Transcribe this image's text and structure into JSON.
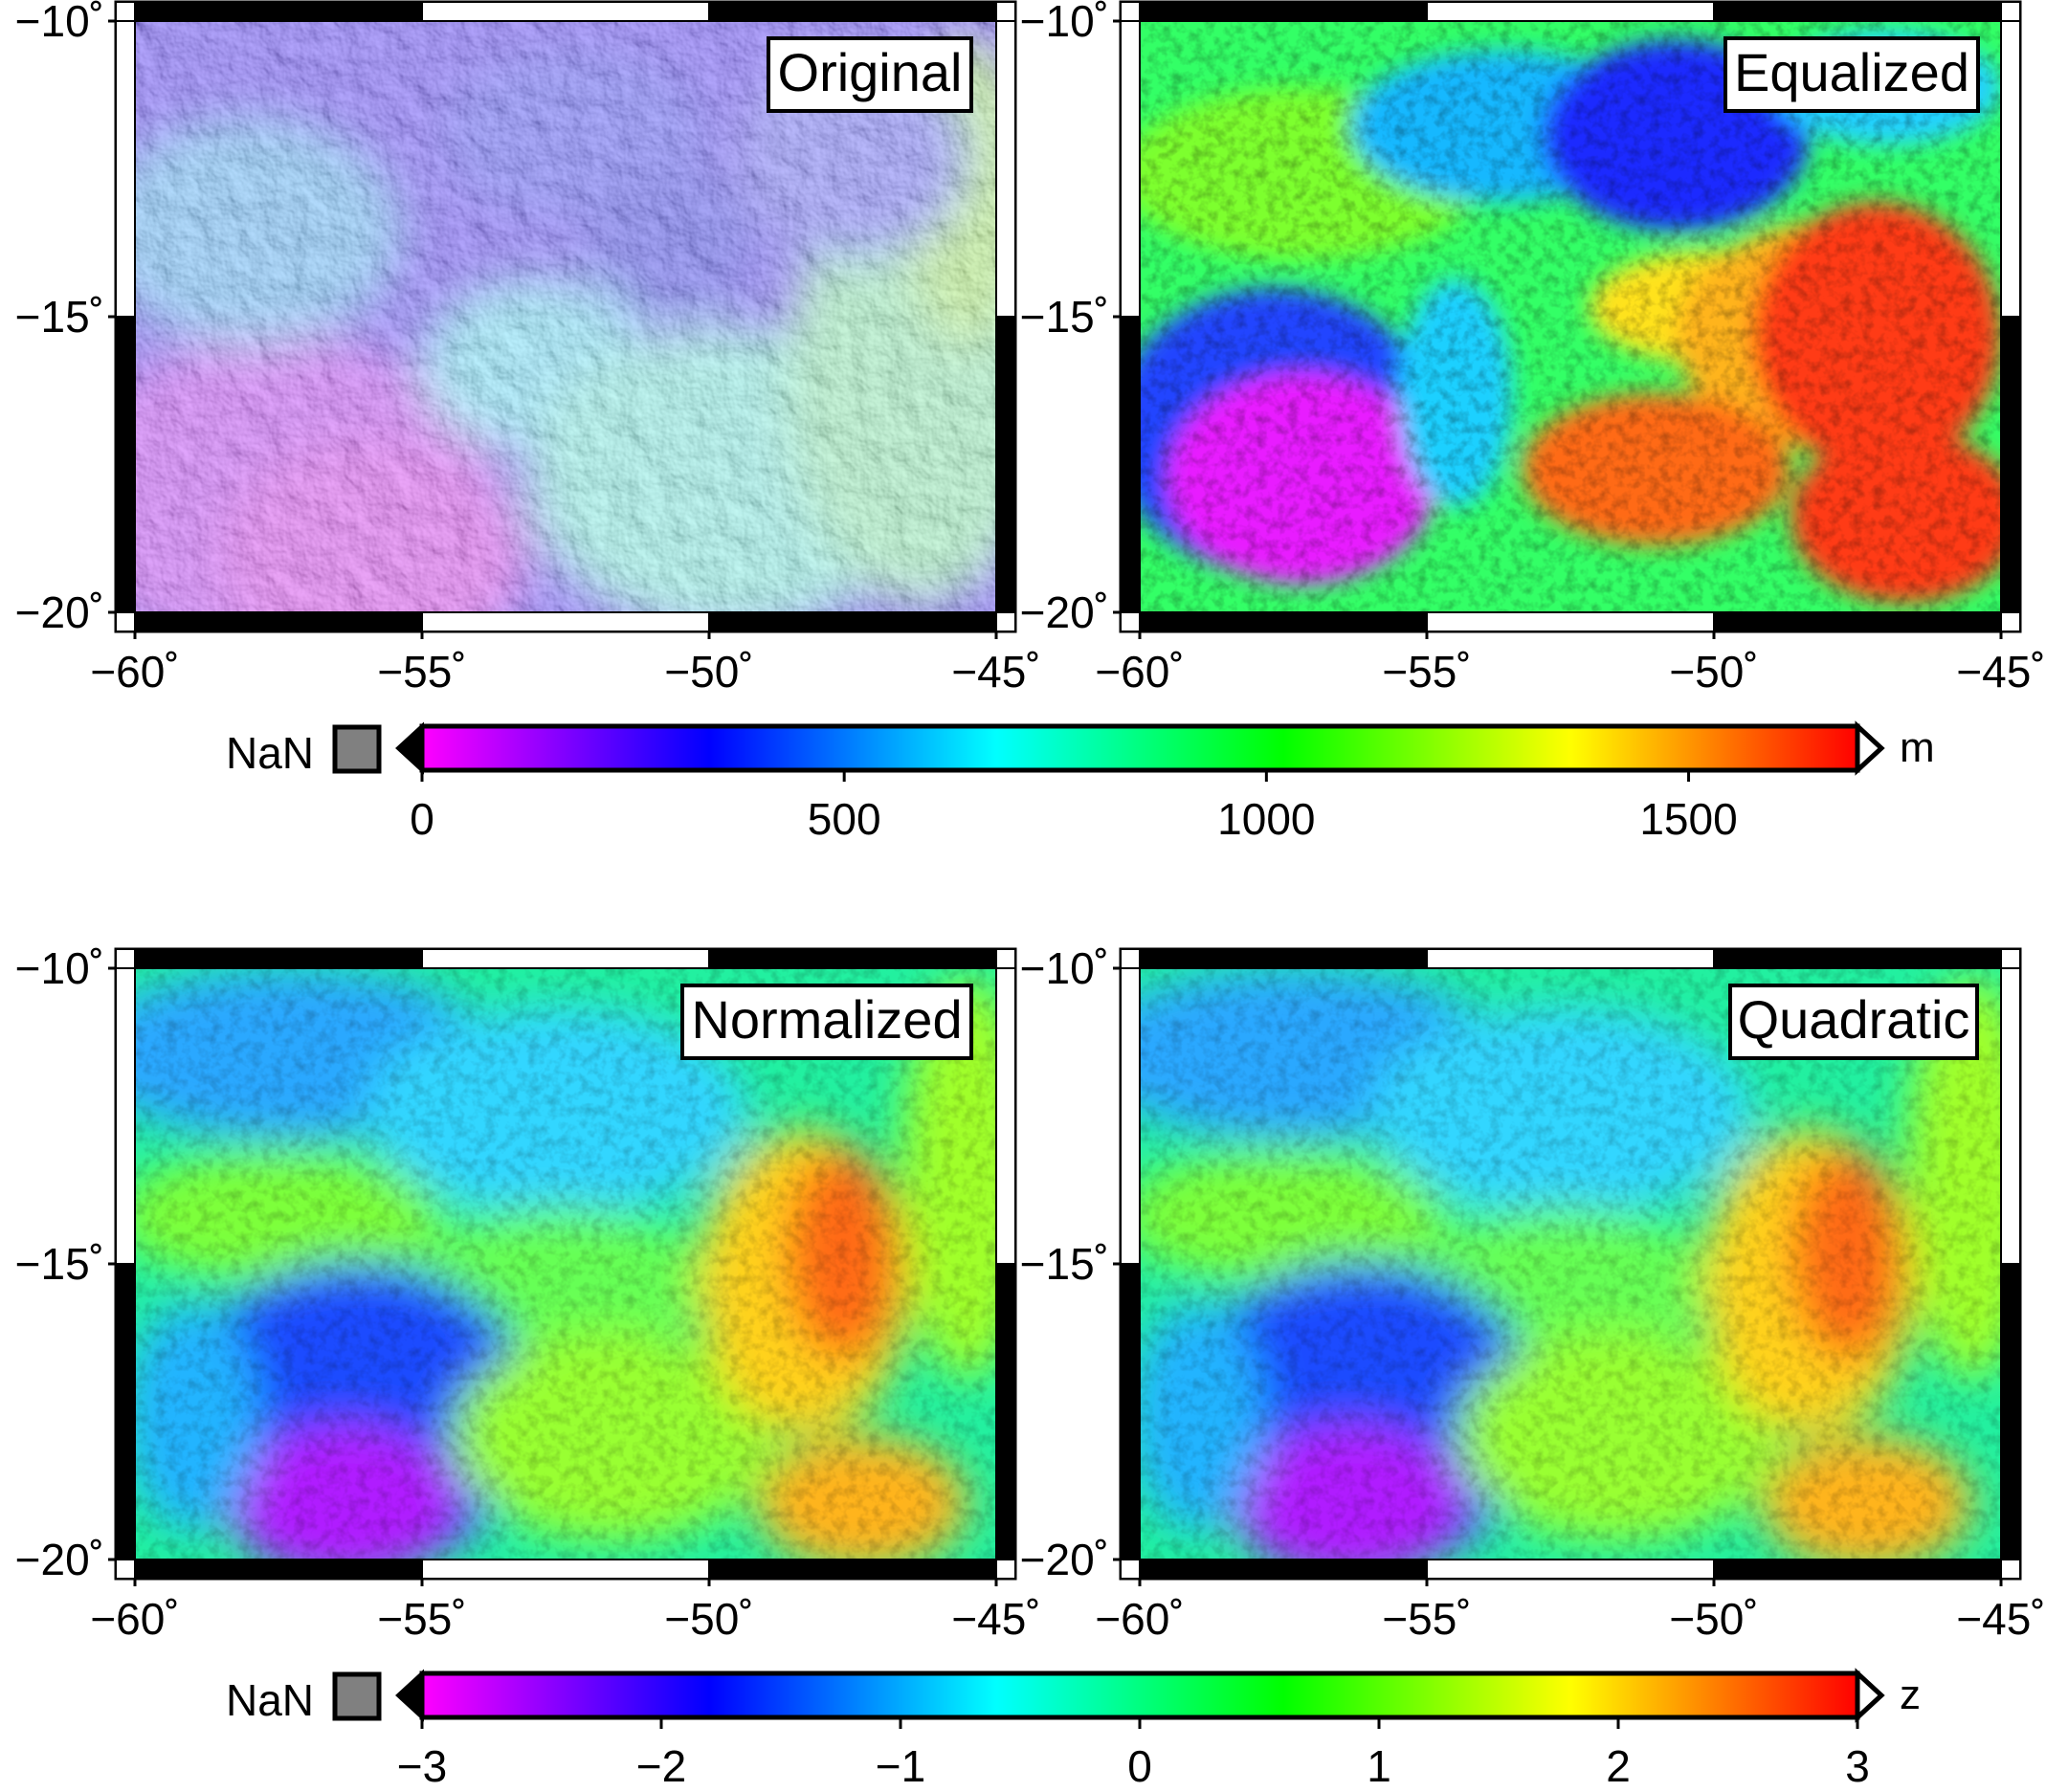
{
  "figure": {
    "panels": [
      {
        "id": "original",
        "title": "Original",
        "colormap": "elevation"
      },
      {
        "id": "equalized",
        "title": "Equalized",
        "colormap": "elevation"
      },
      {
        "id": "normalized",
        "title": "Normalized",
        "colormap": "zscore"
      },
      {
        "id": "quadratic",
        "title": "Quadratic",
        "colormap": "zscore"
      }
    ],
    "map_frame": {
      "lon_ticks": [
        "−60˚",
        "−55˚",
        "−50˚",
        "−45˚"
      ],
      "lat_ticks": [
        "−10˚",
        "−15˚",
        "−20˚"
      ]
    },
    "colorbars": [
      {
        "id": "elevation",
        "nan_label": "NaN",
        "unit": "m",
        "ticks": [
          "0",
          "500",
          "1000",
          "1500"
        ],
        "tick_values": [
          0,
          500,
          1000,
          1500
        ],
        "range": [
          0,
          1700
        ]
      },
      {
        "id": "zscore",
        "nan_label": "NaN",
        "unit": "z",
        "ticks": [
          "−3",
          "−2",
          "−1",
          "0",
          "1",
          "2",
          "3"
        ],
        "tick_values": [
          -3,
          -2,
          -1,
          0,
          1,
          2,
          3
        ],
        "range": [
          -3,
          3
        ]
      }
    ],
    "colors": {
      "rainbow_stops": [
        "#ff00ff",
        "#0000ff",
        "#00ffff",
        "#00ff00",
        "#ffff00",
        "#ff0000"
      ],
      "nan_color": "#808080",
      "frame": "#000000"
    }
  }
}
